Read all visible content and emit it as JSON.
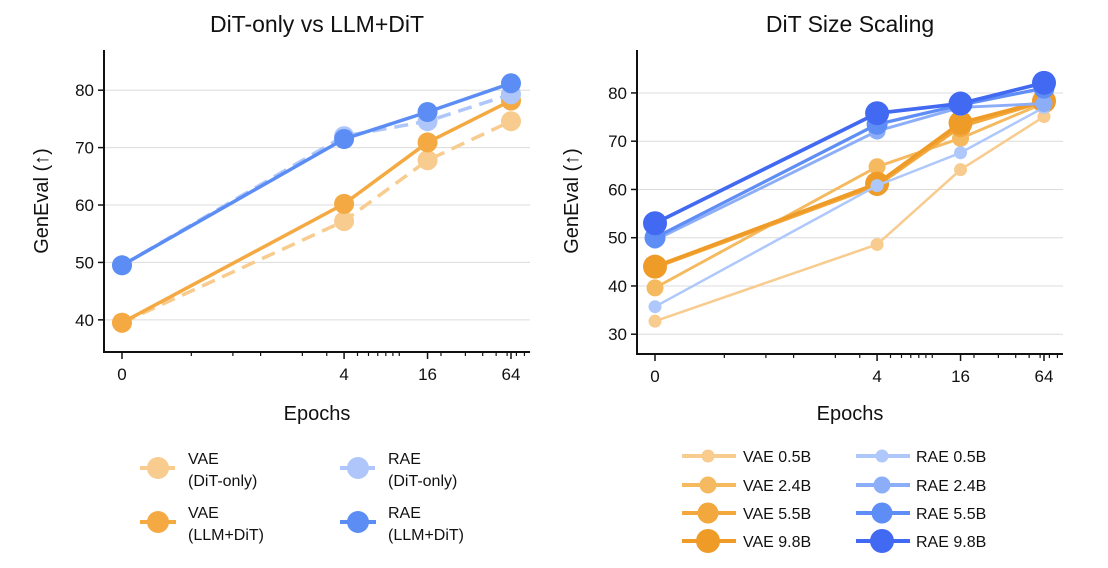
{
  "chart_data": [
    {
      "type": "line",
      "title": "DiT-only vs LLM+DiT",
      "xlabel": "Epochs",
      "ylabel": "GenEval (↑)",
      "x_scale": "symlog",
      "x": [
        0,
        4,
        16,
        64
      ],
      "x_tick_labels": [
        "0",
        "4",
        "16",
        "64"
      ],
      "ylim": [
        34.4,
        87
      ],
      "y_ticks": [
        40,
        50,
        60,
        70,
        80
      ],
      "grid": "horizontal",
      "legend": "below, 2 columns",
      "series": [
        {
          "name": "VAE\n(DiT-only)",
          "values": [
            39.5,
            57.2,
            67.8,
            74.6
          ],
          "color": "#F8CB8E",
          "dash": true,
          "size": 10
        },
        {
          "name": "VAE\n(LLM+DiT)",
          "values": [
            39.5,
            60.2,
            70.9,
            78.2
          ],
          "color": "#F4A942",
          "dash": false,
          "size": 10
        },
        {
          "name": "RAE\n(DiT-only)",
          "values": [
            49.5,
            72.0,
            74.6,
            79.3
          ],
          "color": "#AEC6FA",
          "dash": true,
          "size": 10
        },
        {
          "name": "RAE\n(LLM+DiT)",
          "values": [
            49.5,
            71.5,
            76.2,
            81.2
          ],
          "color": "#5B8DF5",
          "dash": false,
          "size": 10
        }
      ]
    },
    {
      "type": "line",
      "title": "DiT Size Scaling",
      "xlabel": "Epochs",
      "ylabel": "GenEval (↑)",
      "x_scale": "symlog",
      "x": [
        0,
        4,
        16,
        64
      ],
      "x_tick_labels": [
        "0",
        "4",
        "16",
        "64"
      ],
      "ylim": [
        25.9,
        88.9
      ],
      "y_ticks": [
        30,
        40,
        50,
        60,
        70,
        80
      ],
      "grid": "horizontal",
      "legend": "below, 2 columns",
      "series": [
        {
          "name": "VAE 0.5B",
          "values": [
            32.7,
            48.6,
            64.1,
            75.1
          ],
          "color": "#F8CB8E",
          "dash": false,
          "size": 6.5
        },
        {
          "name": "VAE 2.4B",
          "values": [
            39.6,
            64.7,
            70.6,
            77.9
          ],
          "color": "#F5B95F",
          "dash": false,
          "size": 8.5
        },
        {
          "name": "VAE 5.5B",
          "values": [
            43.8,
            60.8,
            73.0,
            78.2
          ],
          "color": "#F3A83E",
          "dash": false,
          "size": 10.5
        },
        {
          "name": "VAE 9.8B",
          "values": [
            44.0,
            61.2,
            73.8,
            78.3
          ],
          "color": "#EF9B27",
          "dash": false,
          "size": 12
        },
        {
          "name": "RAE 0.5B",
          "values": [
            35.7,
            60.8,
            67.6,
            77.0
          ],
          "color": "#AFC8FB",
          "dash": false,
          "size": 6.5
        },
        {
          "name": "RAE 2.4B",
          "values": [
            49.5,
            72.1,
            77.0,
            77.8
          ],
          "color": "#8CAEF9",
          "dash": false,
          "size": 8.5
        },
        {
          "name": "RAE 5.5B",
          "values": [
            50.0,
            73.5,
            77.5,
            81.0
          ],
          "color": "#5F8DF6",
          "dash": false,
          "size": 10.5
        },
        {
          "name": "RAE 9.8B",
          "values": [
            53.0,
            75.8,
            77.8,
            82.1
          ],
          "color": "#4169F2",
          "dash": false,
          "size": 12
        }
      ]
    }
  ]
}
